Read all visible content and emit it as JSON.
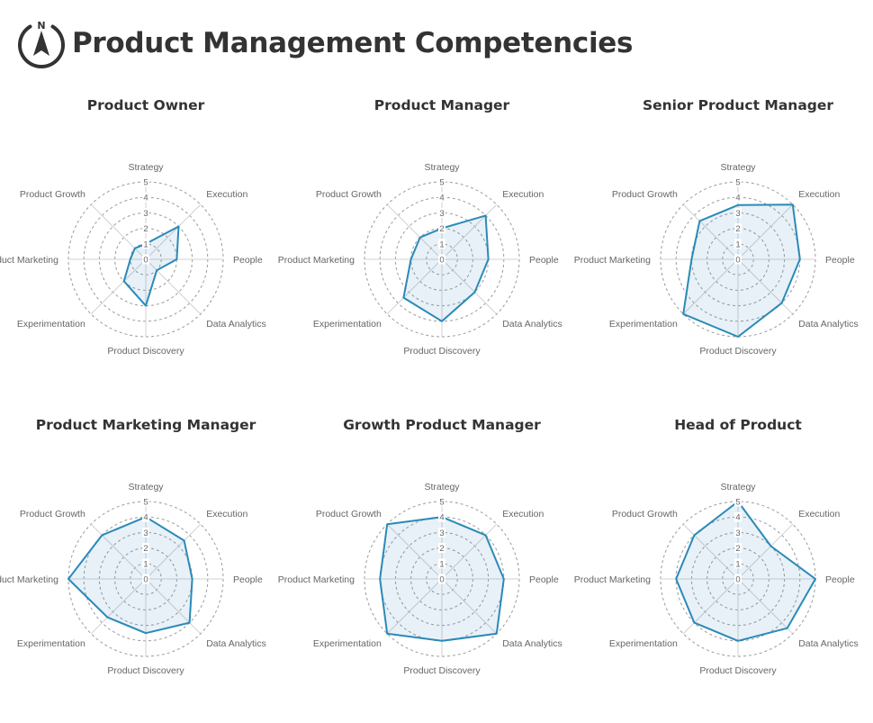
{
  "page": {
    "title": "Product Management Competencies"
  },
  "logo": {
    "icon": "compass-icon",
    "letter": "N"
  },
  "colors": {
    "line": "#2a8ab8",
    "fill": "rgba(31,119,180,0.10)",
    "grid": "#9a9a9a"
  },
  "chart_data": [
    {
      "type": "radar",
      "title": "Product Owner",
      "axes": [
        "Strategy",
        "Execution",
        "People",
        "Data Analytics",
        "Product Discovery",
        "Experimentation",
        "Product Marketing",
        "Product Growth"
      ],
      "ticks": [
        "0",
        "1",
        "2",
        "3",
        "4",
        "5"
      ],
      "range": [
        0,
        5
      ],
      "grid": "dashed-circles",
      "values": [
        1,
        3,
        2,
        1,
        3,
        2,
        1,
        1
      ]
    },
    {
      "type": "radar",
      "title": "Product Manager",
      "axes": [
        "Strategy",
        "Execution",
        "People",
        "Data Analytics",
        "Product Discovery",
        "Experimentation",
        "Product Marketing",
        "Product Growth"
      ],
      "ticks": [
        "0",
        "1",
        "2",
        "3",
        "4",
        "5"
      ],
      "range": [
        0,
        5
      ],
      "grid": "dashed-circles",
      "values": [
        2,
        4,
        3,
        3,
        4,
        3.5,
        2,
        2
      ]
    },
    {
      "type": "radar",
      "title": "Senior Product Manager",
      "axes": [
        "Strategy",
        "Execution",
        "People",
        "Data Analytics",
        "Product Discovery",
        "Experimentation",
        "Product Marketing",
        "Product Growth"
      ],
      "ticks": [
        "0",
        "1",
        "2",
        "3",
        "4",
        "5"
      ],
      "range": [
        0,
        5
      ],
      "grid": "dashed-circles",
      "values": [
        3.5,
        5,
        4,
        4,
        5,
        5,
        3,
        3.5
      ]
    },
    {
      "type": "radar",
      "title": "Product Marketing Manager",
      "axes": [
        "Strategy",
        "Execution",
        "People",
        "Data Analytics",
        "Product Discovery",
        "Experimentation",
        "Product Marketing",
        "Product Growth"
      ],
      "ticks": [
        "0",
        "1",
        "2",
        "3",
        "4",
        "5"
      ],
      "range": [
        0,
        5
      ],
      "grid": "dashed-circles",
      "values": [
        4,
        3.5,
        3,
        4,
        3.5,
        3.5,
        5,
        4
      ]
    },
    {
      "type": "radar",
      "title": "Growth Product Manager",
      "axes": [
        "Strategy",
        "Execution",
        "People",
        "Data Analytics",
        "Product Discovery",
        "Experimentation",
        "Product Marketing",
        "Product Growth"
      ],
      "ticks": [
        "0",
        "1",
        "2",
        "3",
        "4",
        "5"
      ],
      "range": [
        0,
        5
      ],
      "grid": "dashed-circles",
      "values": [
        4,
        4,
        4,
        5,
        4,
        5,
        4,
        5
      ]
    },
    {
      "type": "radar",
      "title": "Head of Product",
      "axes": [
        "Strategy",
        "Execution",
        "People",
        "Data Analytics",
        "Product Discovery",
        "Experimentation",
        "Product Marketing",
        "Product Growth"
      ],
      "ticks": [
        "0",
        "1",
        "2",
        "3",
        "4",
        "5"
      ],
      "range": [
        0,
        5
      ],
      "grid": "dashed-circles",
      "values": [
        5,
        3,
        5,
        4.5,
        4,
        4,
        4,
        4
      ]
    }
  ]
}
